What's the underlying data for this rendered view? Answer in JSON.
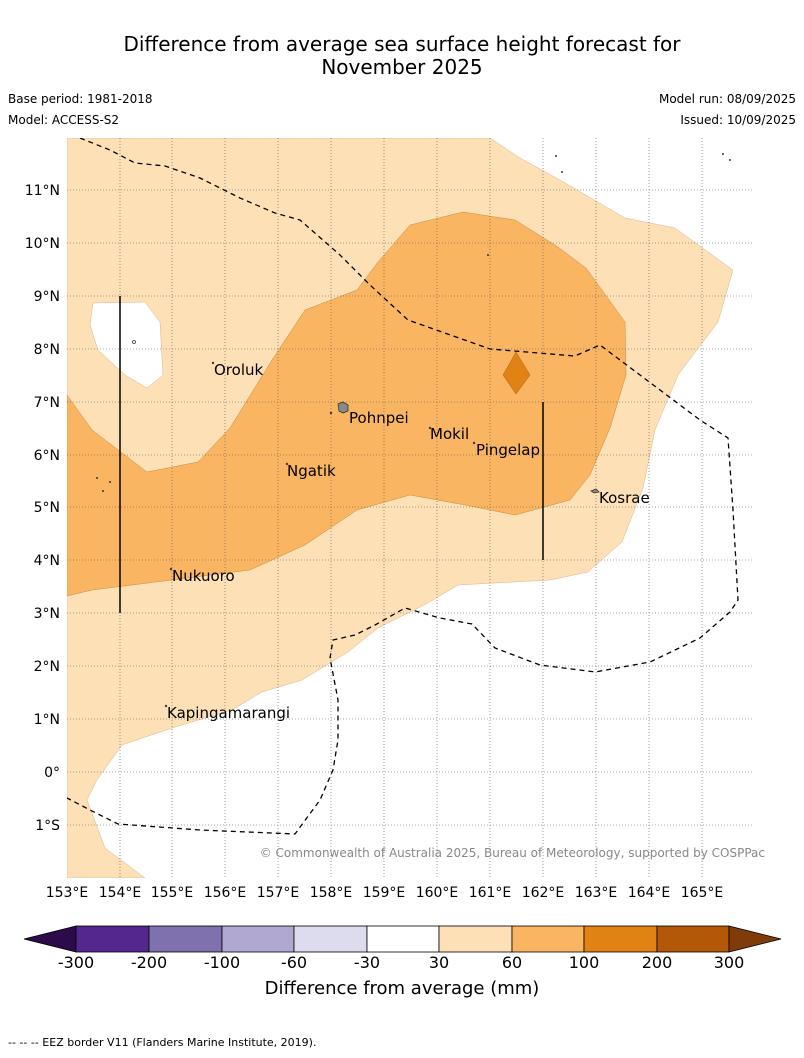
{
  "title_line1": "Difference from average sea surface height forecast for",
  "title_line2": "November 2025",
  "base_period": "Base period: 1981-2018",
  "model": "Model: ACCESS-S2",
  "model_run": "Model run: 08/09/2025",
  "issued": "Issued: 10/09/2025",
  "lon_labels": [
    "153°E",
    "154°E",
    "155°E",
    "156°E",
    "157°E",
    "158°E",
    "159°E",
    "160°E",
    "161°E",
    "162°E",
    "163°E",
    "164°E",
    "165°E"
  ],
  "lat_labels": [
    "11°N",
    "10°N",
    "9°N",
    "8°N",
    "7°N",
    "6°N",
    "5°N",
    "4°N",
    "3°N",
    "2°N",
    "1°N",
    "0°",
    "1°S"
  ],
  "places": {
    "oroluk": "Oroluk",
    "pohnpei": "Pohnpei",
    "mokil": "Mokil",
    "pingelap": "Pingelap",
    "ngatik": "Ngatik",
    "kosrae": "Kosrae",
    "nukuoro": "Nukuoro",
    "kapingamarangi": "Kapingamarangi"
  },
  "copyright": "© Commonwealth of Australia 2025, Bureau of Meteorology, supported by COSPPac",
  "colorbar": {
    "labels": [
      "-300",
      "-200",
      "-100",
      "-60",
      "-30",
      "30",
      "60",
      "100",
      "200",
      "300"
    ],
    "colors": [
      "#2d0b4b",
      "#54278f",
      "#7e71ae",
      "#b0a8d1",
      "#dcdcee",
      "#ffffff",
      "#fde0b6",
      "#fab562",
      "#e08214",
      "#b35806",
      "#7f3b08"
    ],
    "title": "Difference from average (mm)"
  },
  "footer": "-- -- -- EEZ border V11 (Flanders Marine Institute, 2019).",
  "colors": {
    "light": "#fde0b6",
    "mid": "#fab562",
    "dark": "#e08214"
  }
}
